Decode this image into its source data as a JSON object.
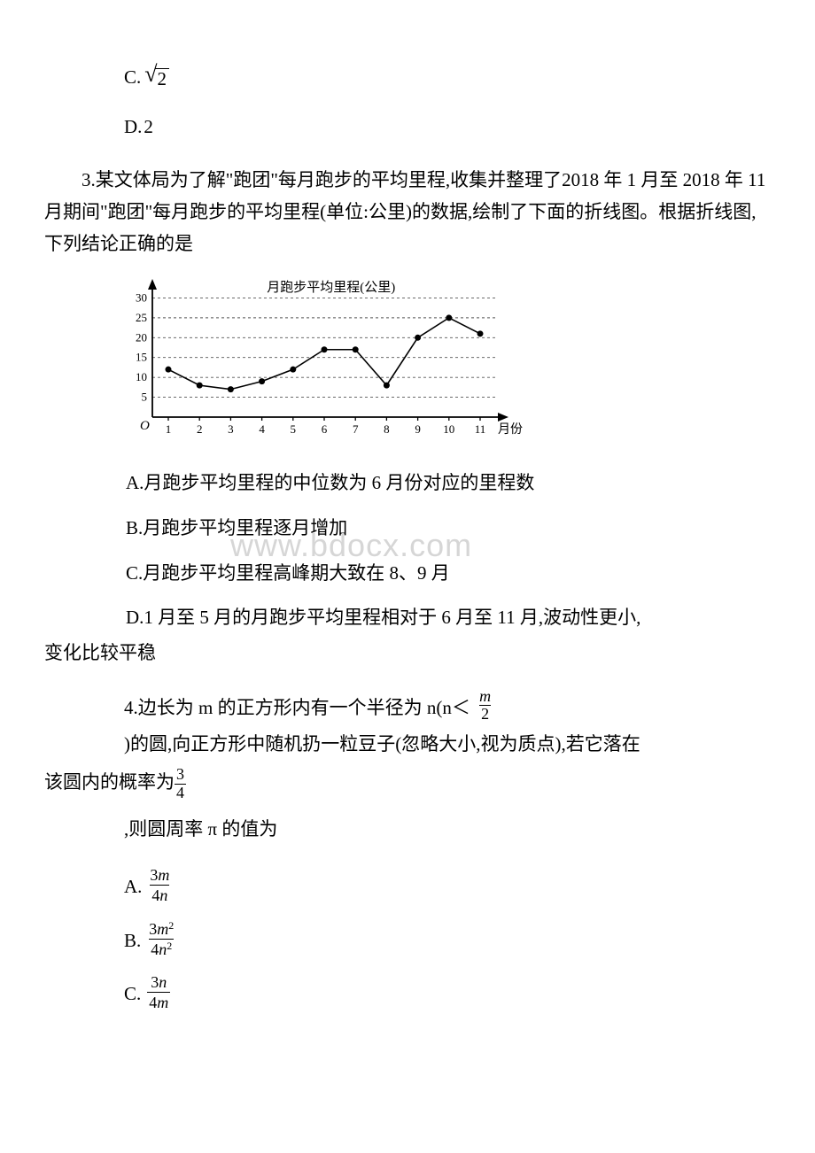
{
  "q2": {
    "optC_label": "C.",
    "optC_radicand": "2",
    "optD_label": "D.",
    "optD_value": "2"
  },
  "q3": {
    "stem": "3.某文体局为了解\"跑团\"每月跑步的平均里程,收集并整理了2018 年 1 月至 2018 年 11 月期间\"跑团\"每月跑步的平均里程(单位:公里)的数据,绘制了下面的折线图。根据折线图,下列结论正确的是",
    "chart": {
      "type": "line",
      "title": "月跑步平均里程(公里)",
      "x_label": "月份",
      "x_ticks": [
        "1",
        "2",
        "3",
        "4",
        "5",
        "6",
        "7",
        "8",
        "9",
        "10",
        "11"
      ],
      "y_ticks": [
        5,
        10,
        15,
        20,
        25,
        30
      ],
      "ylim": [
        0,
        33
      ],
      "values": [
        12,
        8,
        7,
        9,
        12,
        17,
        17,
        8,
        20,
        25,
        21
      ],
      "line_color": "#000000",
      "marker_color": "#000000",
      "marker_style": "circle",
      "marker_size": 3.5,
      "line_width": 1.6,
      "grid_color": "#555555",
      "grid_dash": "3 3",
      "background_color": "#ffffff",
      "axis_color": "#000000",
      "title_fontsize": 15,
      "tick_fontsize": 13
    },
    "optA": "A.月跑步平均里程的中位数为 6 月份对应的里程数",
    "optB": "B.月跑步平均里程逐月增加",
    "optC": "C.月跑步平均里程高峰期大致在 8、9 月",
    "optD_1": "D.1 月至 5 月的月跑步平均里程相对于 6 月至 11 月,波动性更小,",
    "optD_2": "变化比较平稳"
  },
  "q4": {
    "stem_a": "4.边长为 m 的正方形内有一个半径为 n(n＜",
    "r_frac": {
      "num": "m",
      "den": "2"
    },
    "stem_b": ")的圆,向正方形中随机扔一粒豆子(忽略大小,视为质点),若它落在",
    "stem_c": "该圆内的概率为",
    "p_frac": {
      "num": "3",
      "den": "4"
    },
    "stem_d": ",则圆周率 π 的值为",
    "optA_label": "A.",
    "optA_frac": {
      "num_a": "3",
      "num_b": "m",
      "den_a": "4",
      "den_b": "n",
      "num_exp": "",
      "den_exp": ""
    },
    "optB_label": "B.",
    "optB_frac": {
      "num_a": "3",
      "num_b": "m",
      "den_a": "4",
      "den_b": "n",
      "num_exp": "2",
      "den_exp": "2"
    },
    "optC_label": "C.",
    "optC_frac": {
      "num_a": "3",
      "num_b": "n",
      "den_a": "4",
      "den_b": "m",
      "num_exp": "",
      "den_exp": ""
    }
  },
  "watermark": "www.bdocx.com"
}
